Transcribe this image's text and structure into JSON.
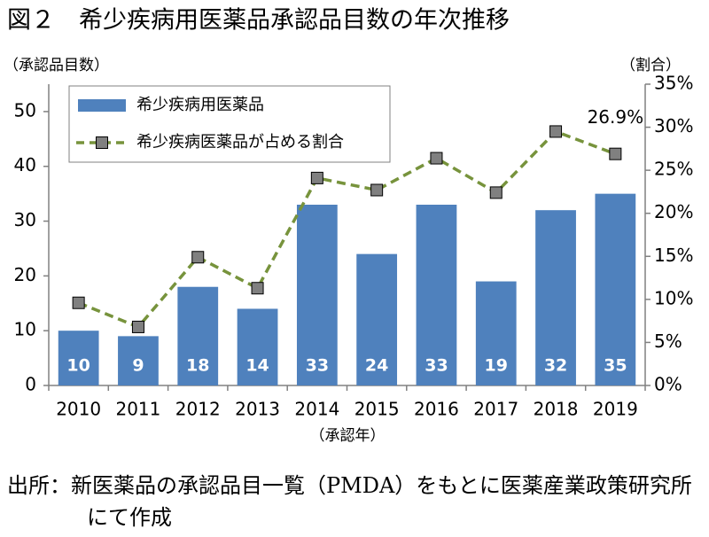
{
  "chart_data": {
    "type": "bar",
    "title": "図２　希少疾病用医薬品承認品目数の年次推移",
    "y_label": "（承認品目数）",
    "y2_label": "（割合）",
    "x_label": "（承認年）",
    "categories": [
      "2010",
      "2011",
      "2012",
      "2013",
      "2014",
      "2015",
      "2016",
      "2017",
      "2018",
      "2019"
    ],
    "series": [
      {
        "name": "希少疾病用医薬品",
        "type": "bar",
        "color": "#4f81bd",
        "values": [
          10,
          9,
          18,
          14,
          33,
          24,
          33,
          19,
          32,
          35
        ]
      },
      {
        "name": "希少疾病医薬品が占める割合",
        "type": "line",
        "axis": "y2",
        "color": "#77933c",
        "marker_color": "#808080",
        "values": [
          9.6,
          6.8,
          14.9,
          11.3,
          24.1,
          22.7,
          26.4,
          22.4,
          29.5,
          26.9
        ],
        "value_labels": [
          null,
          null,
          null,
          null,
          null,
          null,
          null,
          null,
          null,
          "26.9%"
        ]
      }
    ],
    "ylim": [
      0,
      55
    ],
    "yticks": [
      0,
      10,
      20,
      30,
      40,
      50
    ],
    "y2lim": [
      0,
      35
    ],
    "y2ticks": [
      {
        "value": 0,
        "label": "0%"
      },
      {
        "value": 5,
        "label": "5%"
      },
      {
        "value": 10,
        "label": "10%"
      },
      {
        "value": 15,
        "label": "15%"
      },
      {
        "value": 20,
        "label": "20%"
      },
      {
        "value": 25,
        "label": "25%"
      },
      {
        "value": 30,
        "label": "30%"
      },
      {
        "value": 35,
        "label": "35%"
      }
    ],
    "legend": "top-left",
    "source": "出所：新医薬品の承認品目一覧（PMDA）をもとに医薬産業政策研究所にて作成"
  }
}
